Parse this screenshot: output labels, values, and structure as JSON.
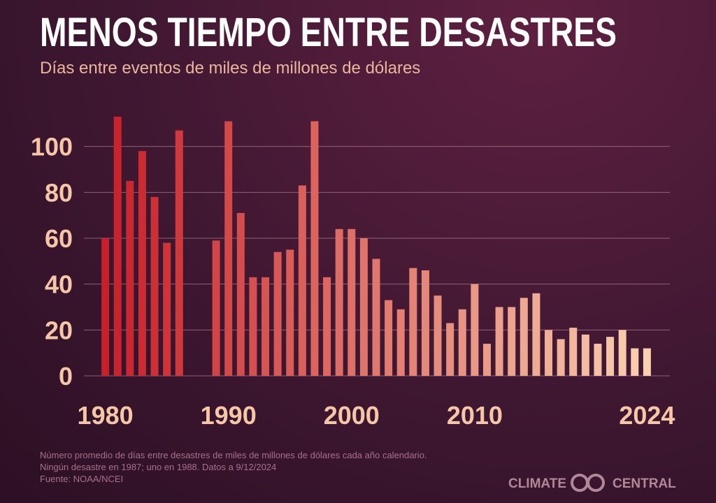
{
  "chart_data": {
    "type": "bar",
    "title": "MENOS TIEMPO ENTRE DESASTRES",
    "subtitle": "Días entre eventos de miles de millones de dólares",
    "x": [
      1980,
      1981,
      1982,
      1983,
      1984,
      1985,
      1986,
      1987,
      1988,
      1989,
      1990,
      1991,
      1992,
      1993,
      1994,
      1995,
      1996,
      1997,
      1998,
      1999,
      2000,
      2001,
      2002,
      2003,
      2004,
      2005,
      2006,
      2007,
      2008,
      2009,
      2010,
      2011,
      2012,
      2013,
      2014,
      2015,
      2016,
      2017,
      2018,
      2019,
      2020,
      2021,
      2022,
      2023,
      2024
    ],
    "values": [
      60,
      113,
      85,
      98,
      78,
      58,
      107,
      null,
      null,
      59,
      111,
      71,
      43,
      43,
      54,
      55,
      83,
      111,
      43,
      64,
      64,
      60,
      51,
      33,
      29,
      47,
      46,
      35,
      23,
      29,
      40,
      14,
      30,
      30,
      34,
      36,
      20,
      16,
      21,
      18,
      14,
      17,
      20,
      12,
      12
    ],
    "colors": [
      "#c8202a",
      "#f9d0b0"
    ],
    "xlim": [
      1979,
      2025
    ],
    "xticks": [
      1980,
      1990,
      2000,
      2010,
      2024
    ],
    "ylim": [
      0,
      120
    ],
    "yticks": [
      0,
      20,
      40,
      60,
      80,
      100
    ],
    "grid": true,
    "notes": [
      "Número promedio de días entre desastres de miles de millones de dólares cada año calendario.",
      "Ningún desastre en 1987; uno en 1988. Datos a 9/12/2024",
      "Fuente: NOAA/NCEI"
    ],
    "logo": [
      "CLIMATE",
      "CENTRAL"
    ]
  }
}
